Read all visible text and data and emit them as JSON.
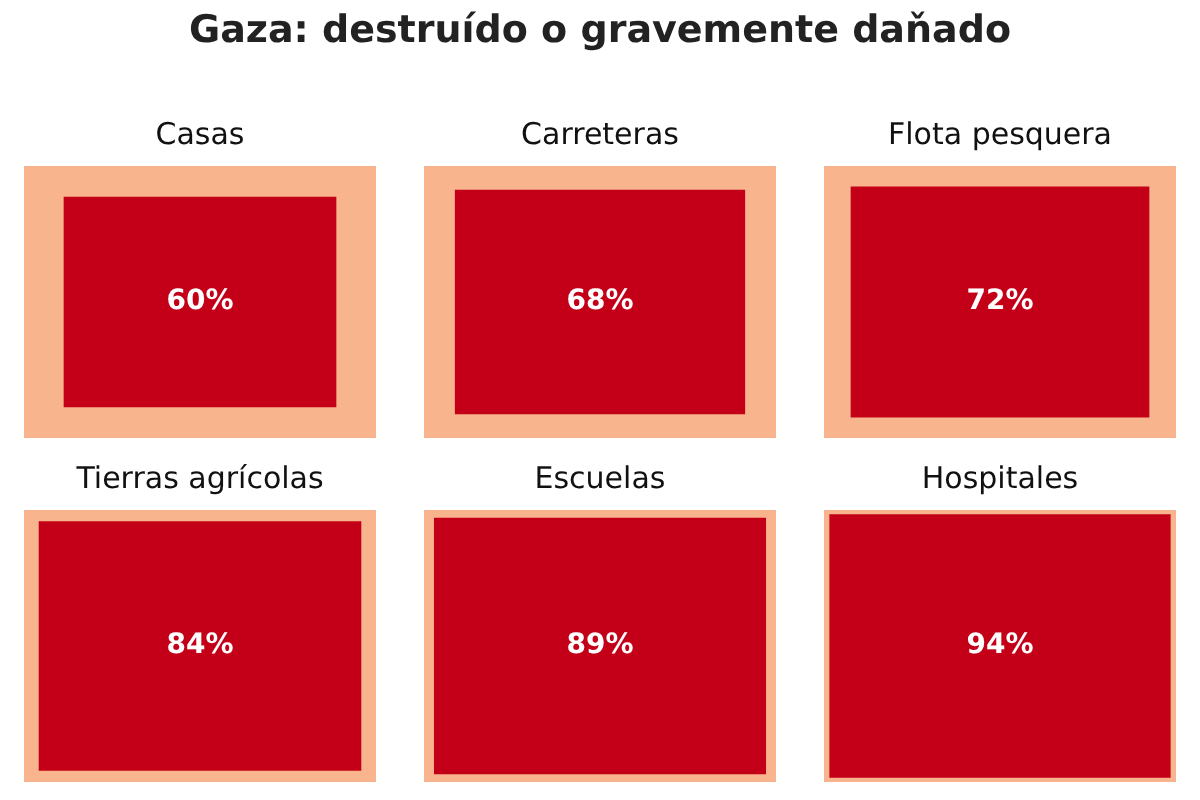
{
  "chart_data": {
    "type": "other",
    "title": "Gaza: destruído o gravemente daňado",
    "categories": [
      "Casas",
      "Carreteras",
      "Flota pesquera",
      "Tierras agrícolas",
      "Escuelas",
      "Hospitales"
    ],
    "series": [
      {
        "color": "#c40018",
        "values": [
          60,
          68,
          72,
          84,
          89,
          94
        ],
        "value_labels": [
          "60%",
          "68%",
          "72%",
          "84%",
          "89%",
          "94%"
        ]
      }
    ]
  }
}
